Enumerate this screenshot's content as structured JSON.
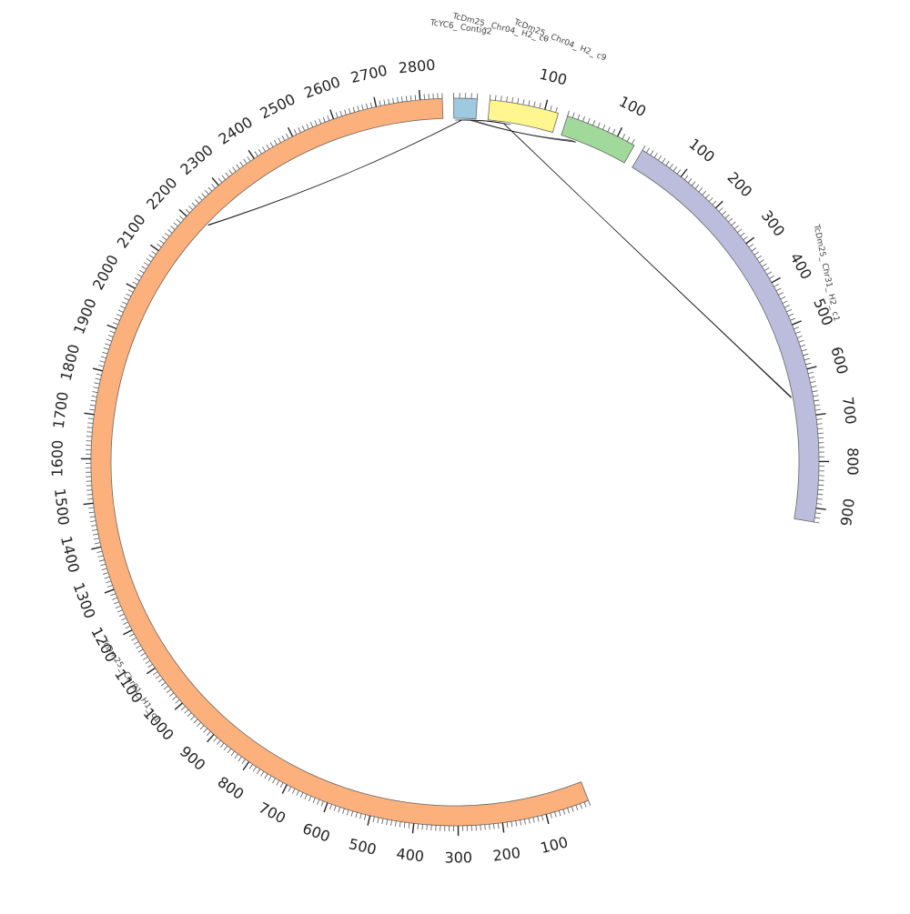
{
  "chart_data": {
    "type": "circos",
    "chromosomes": [
      {
        "id": "h1",
        "name": "TcDm25_ Chr01_ H1_ c1",
        "color": "#fcb07c",
        "length": 2850,
        "tick_labels": [
          "100",
          "200",
          "300",
          "400",
          "500",
          "600",
          "700",
          "800",
          "900",
          "1000",
          "1100",
          "1200",
          "1300",
          "1400",
          "1500",
          "1600",
          "1700",
          "1800",
          "1900",
          "2000",
          "2100",
          "2200",
          "2300",
          "2400",
          "2500",
          "2600",
          "2700",
          "2800"
        ]
      },
      {
        "id": "yc6",
        "name": "TcYC6_ Contig2",
        "color": "#9ecae1",
        "length": 40,
        "tick_labels": []
      },
      {
        "id": "c0",
        "name": "TcDm25_ Chr04_ H2_ c0",
        "color": "#fff68f",
        "length": 125,
        "tick_labels": [
          "100"
        ]
      },
      {
        "id": "c9",
        "name": "TcDm25_ Chr04_ H2_ c9",
        "color": "#a1d99b",
        "length": 135,
        "tick_labels": [
          "100"
        ]
      },
      {
        "id": "h2c1",
        "name": "TcDm25_ Chr31_ H2_ c1",
        "color": "#bcbddc",
        "length": 930,
        "tick_labels": [
          "100",
          "200",
          "300",
          "400",
          "500",
          "600",
          "700",
          "800",
          "900"
        ]
      }
    ],
    "links": [
      {
        "from": "yc6",
        "from_range": [
          2,
          10
        ],
        "to": "c0",
        "to_range": [
          18,
          26
        ],
        "color": "#3a6e5a"
      },
      {
        "from": "yc6",
        "from_range": [
          10,
          22
        ],
        "to": "c0",
        "to_range": [
          26,
          36
        ],
        "color": "#5a5f7a"
      },
      {
        "from": "yc6",
        "from_range": [
          22,
          30
        ],
        "to": "c0",
        "to_range": [
          36,
          44
        ],
        "color": "#4a7c3e"
      },
      {
        "from": "yc6",
        "from_range": [
          30,
          38
        ],
        "to": "c9",
        "to_range": [
          20,
          32
        ],
        "color": "#7b69a8"
      },
      {
        "from": "h1",
        "from_range": [
          2218,
          2221
        ],
        "to": "yc6",
        "to_range": [
          14,
          15
        ],
        "color": "#2f4f4f"
      },
      {
        "from": "h2c1",
        "from_range": [
          651,
          654
        ],
        "to": "c0",
        "to_range": [
          30,
          31
        ],
        "color": "#222222"
      }
    ]
  }
}
